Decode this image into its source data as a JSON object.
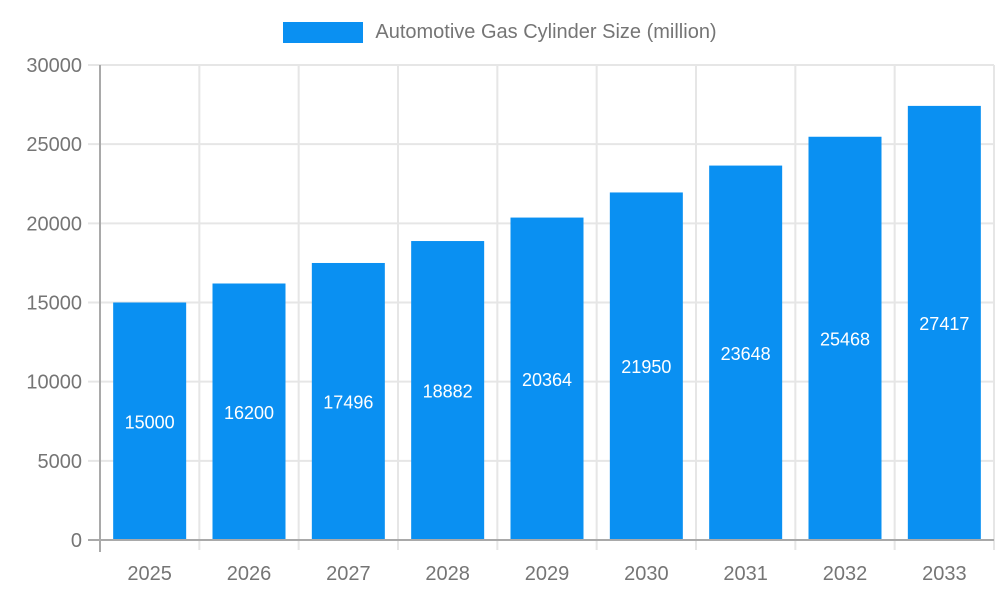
{
  "chart_data": {
    "type": "bar",
    "title": "Automotive Gas Cylinder Size (million)",
    "legend": {
      "position": "top",
      "entries": [
        "Automotive Gas Cylinder Size (million)"
      ]
    },
    "categories": [
      "2025",
      "2026",
      "2027",
      "2028",
      "2029",
      "2030",
      "2031",
      "2032",
      "2033"
    ],
    "series": [
      {
        "name": "Automotive Gas Cylinder Size (million)",
        "values": [
          15000,
          16200,
          17496,
          18882,
          20364,
          21950,
          23648,
          25468,
          27417
        ],
        "color": "#0a90f2"
      }
    ],
    "xlabel": "",
    "ylabel": "",
    "ylim": [
      0,
      30000
    ],
    "yticks": [
      0,
      5000,
      10000,
      15000,
      20000,
      25000,
      30000
    ],
    "grid": true,
    "value_labels": {
      "visible": true,
      "position": "inside-center",
      "color": "#ffffff"
    },
    "colors": {
      "bar": "#0a90f2",
      "axis_line": "#a9a9a9",
      "gridline": "#e6e6e6",
      "tick_label": "#757575",
      "legend_text": "#757575",
      "value_label": "#ffffff",
      "background": "#ffffff"
    }
  }
}
